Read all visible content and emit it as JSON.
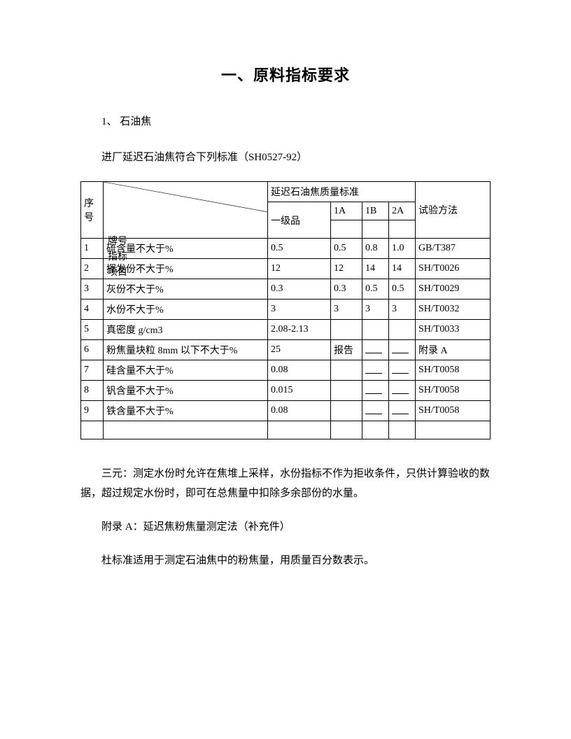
{
  "title": "一、原料指标要求",
  "section1_label": "1、 石油焦",
  "intro_line": "进厂延迟石油焦符合下列标准（SH0527-92）",
  "table": {
    "header_seq": "序号",
    "header_diag_lines": "牌号\n指标\n项目",
    "header_std_group": "延迟石油焦质量标准",
    "header_grade": "一级品",
    "header_1a": "1A",
    "header_1b": "1B",
    "header_2a": "2A",
    "header_method": "试验方法",
    "rows": [
      {
        "seq": "1",
        "item": "硫含量不大于%",
        "grade": "0.5",
        "c1a": "0.5",
        "c1b": "0.8",
        "c2a": "1.0",
        "method": "GB/T387"
      },
      {
        "seq": "2",
        "item": "挥发份不大于%",
        "grade": "12",
        "c1a": "12",
        "c1b": "14",
        "c2a": "14",
        "method": "SH/T0026"
      },
      {
        "seq": "3",
        "item": "灰份不大于%",
        "grade": "0.3",
        "c1a": "0.3",
        "c1b": "0.5",
        "c2a": "0.5",
        "method": "SH/T0029"
      },
      {
        "seq": "4",
        "item": "水份不大于%",
        "grade": "3",
        "c1a": "3",
        "c1b": "3",
        "c2a": "3",
        "method": "SH/T0032"
      },
      {
        "seq": "5",
        "item": "真密度 g/cm3",
        "grade": "2.08-2.13",
        "c1a": "",
        "c1b": "",
        "c2a": "",
        "method": "SH/T0033"
      },
      {
        "seq": "6",
        "item": "粉焦量块粒 8mm 以下不大于%",
        "grade": "25",
        "c1a": "报告",
        "c1b": "__",
        "c2a": "__",
        "method": "附录 A"
      },
      {
        "seq": "7",
        "item": "硅含量不大于%",
        "grade": "0.08",
        "c1a": "",
        "c1b": "__",
        "c2a": "__",
        "method": "SH/T0058"
      },
      {
        "seq": "8",
        "item": "钒含量不大于%",
        "grade": "0.015",
        "c1a": "",
        "c1b": "__",
        "c2a": "__",
        "method": "SH/T0058"
      },
      {
        "seq": "9",
        "item": "铁含量不大于%",
        "grade": "0.08",
        "c1a": "",
        "c1b": "__",
        "c2a": "__",
        "method": "SH/T0058"
      }
    ]
  },
  "note_sanyuan": "三元：测定水份时允许在焦堆上采样，水份指标不作为拒收条件，只供计算验收的数据，超过规定水份时，即可在总焦量中扣除多余部份的水量。",
  "note_appendix": "附录 A：延迟焦粉焦量测定法（补充件）",
  "note_dubiao": "杜标准适用于测定石油焦中的粉焦量，用质量百分数表示。",
  "colors": {
    "text": "#000000",
    "border": "#000000",
    "background": "#ffffff"
  }
}
